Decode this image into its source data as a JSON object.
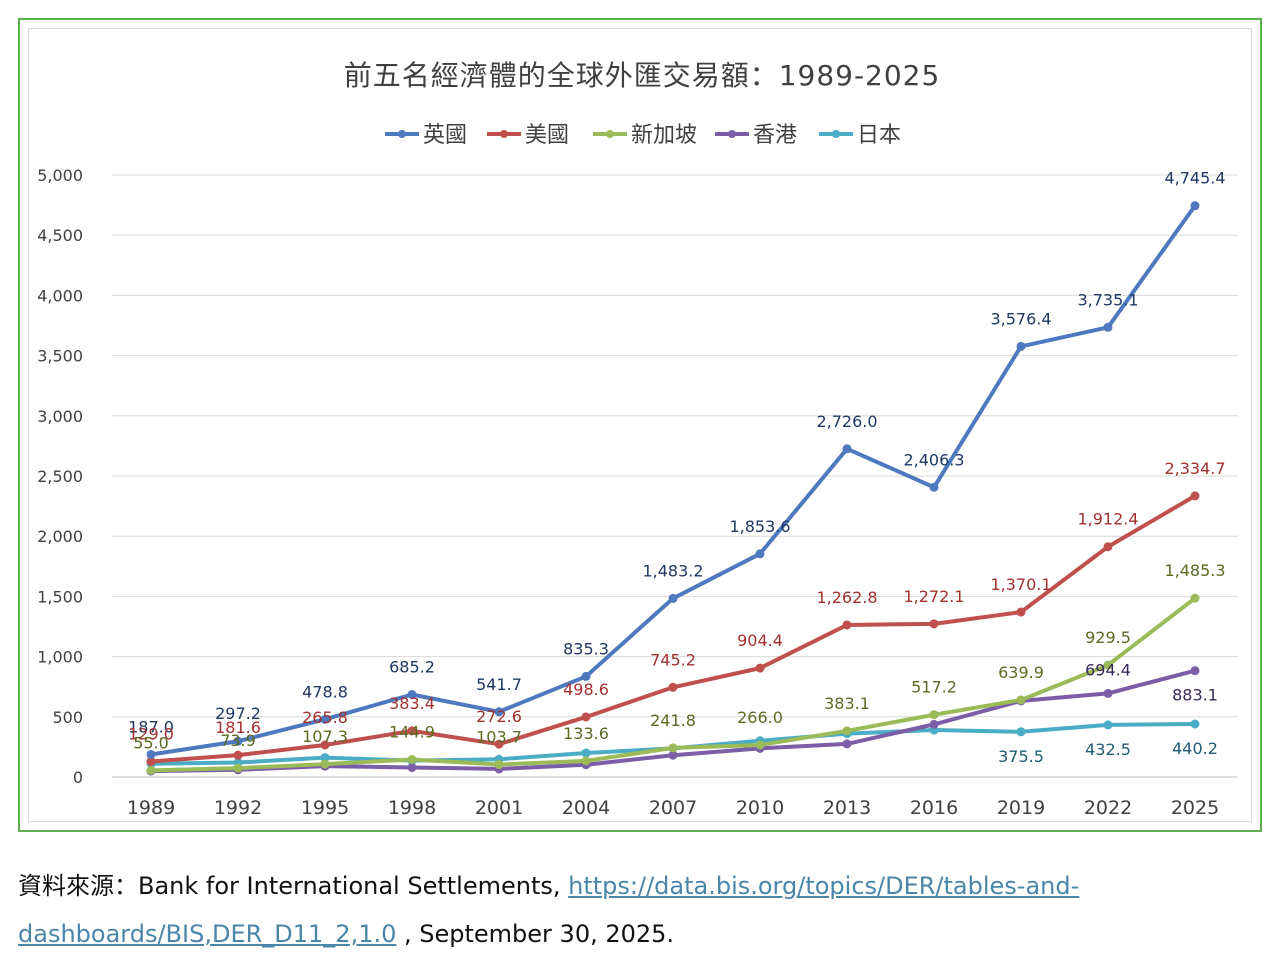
{
  "chart_data": {
    "type": "line",
    "title": "前五名經濟體的全球外匯交易額：1989-2025",
    "xlabel": "",
    "ylabel": "",
    "categories": [
      "1989",
      "1992",
      "1995",
      "1998",
      "2001",
      "2004",
      "2007",
      "2010",
      "2013",
      "2016",
      "2019",
      "2022",
      "2025"
    ],
    "ylim": [
      0,
      5000
    ],
    "yticks": [
      0,
      500,
      1000,
      1500,
      2000,
      2500,
      3000,
      3500,
      4000,
      4500,
      5000
    ],
    "ytick_labels": [
      "0",
      "500",
      "1,000",
      "1,500",
      "2,000",
      "2,500",
      "3,000",
      "3,500",
      "4,000",
      "4,500",
      "5,000"
    ],
    "grid": true,
    "legend": "top-center",
    "series": [
      {
        "name": "英國",
        "color": "#4e79be",
        "label_color": "#1f3864",
        "values": [
          187.0,
          297.2,
          478.8,
          685.2,
          541.7,
          835.3,
          1483.2,
          1853.6,
          2726.0,
          2406.3,
          3576.4,
          3735.1,
          4745.4
        ],
        "labels": [
          "187.0",
          "297.2",
          "478.8",
          "685.2",
          "541.7",
          "835.3",
          "1,483.2",
          "1,853.6",
          "2,726.0",
          "2,406.3",
          "3,576.4",
          "3,735.1",
          "4,745.4"
        ]
      },
      {
        "name": "美國",
        "color": "#c0504d",
        "label_color": "#a2312f",
        "values": [
          129.0,
          181.6,
          265.8,
          383.4,
          272.6,
          498.6,
          745.2,
          904.4,
          1262.8,
          1272.1,
          1370.1,
          1912.4,
          2334.7
        ],
        "labels": [
          "129.0",
          "181.6",
          "265.8",
          "383.4",
          "272.6",
          "498.6",
          "745.2",
          "904.4",
          "1,262.8",
          "1,272.1",
          "1,370.1",
          "1,912.4",
          "2,334.7"
        ]
      },
      {
        "name": "新加坡",
        "color": "#9bbb59",
        "label_color": "#5a6b22",
        "values": [
          55.0,
          73.9,
          107.3,
          144.9,
          103.7,
          133.6,
          241.8,
          266.0,
          383.1,
          517.2,
          639.9,
          929.5,
          1485.3
        ],
        "labels": [
          "55.0",
          "73.9",
          "107.3",
          "144.9",
          "103.7",
          "133.6",
          "241.8",
          "266.0",
          "383.1",
          "517.2",
          "639.9",
          "929.5",
          "1,485.3"
        ]
      },
      {
        "name": "香港",
        "color": "#7b5ea7",
        "label_color": "#3a2a5a",
        "values": [
          49.0,
          60.0,
          90.0,
          79.0,
          67.0,
          102.0,
          181.0,
          238.0,
          275.0,
          437.0,
          632.0,
          694.4,
          883.1
        ],
        "labels": [
          "",
          "",
          "",
          "",
          "",
          "",
          "",
          "",
          "",
          "",
          "",
          "694.4",
          "883.1"
        ]
      },
      {
        "name": "日本",
        "color": "#4bacc6",
        "label_color": "#215c73",
        "values": [
          110.0,
          120.0,
          161.0,
          136.0,
          147.0,
          199.0,
          238.0,
          301.0,
          360.0,
          390.0,
          375.5,
          432.5,
          440.2
        ],
        "labels": [
          "",
          "",
          "",
          "",
          "",
          "",
          "",
          "",
          "",
          "",
          "375.5",
          "432.5",
          "440.2"
        ]
      }
    ]
  },
  "source": {
    "prefix": "資料來源：Bank for International Settlements, ",
    "link_part1": "https://data.bis.org/topics/DER/tables-and-",
    "link_part2": "dashboards/BIS,DER_D11_2,1.0",
    "suffix": " , September 30, 2025."
  }
}
